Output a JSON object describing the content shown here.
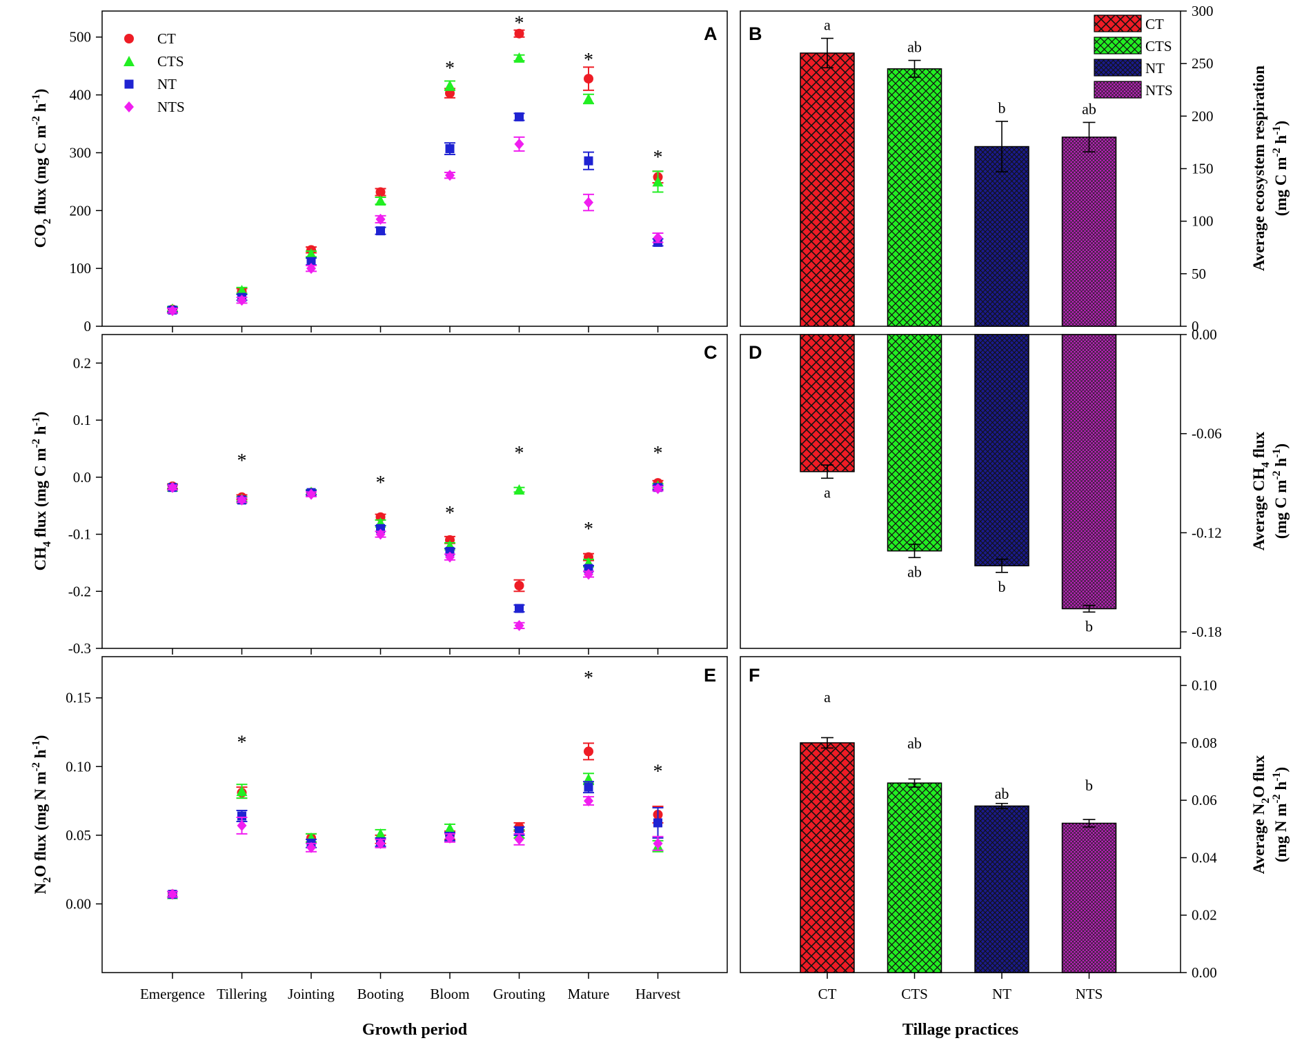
{
  "colors": {
    "CT": "#ee1c25",
    "CTS": "#22ee22",
    "NT": "#1f23d2",
    "NTS": "#f01ef0",
    "NT_bar": "#1a1a8c",
    "NTS_bar": "#c020c0",
    "axis": "#000000"
  },
  "growth_periods": [
    "Emergence",
    "Tillering",
    "Jointing",
    "Booting",
    "Bloom",
    "Grouting",
    "Mature",
    "Harvest"
  ],
  "treatments": [
    "CT",
    "CTS",
    "NT",
    "NTS"
  ],
  "bottom_labels": {
    "left_xlabel": "Growth period",
    "right_xlabel": "Tillage practices"
  },
  "chart_data": [
    {
      "id": "A",
      "type": "scatter",
      "panel_letter": "A",
      "ylabel_parts": [
        "CO",
        "2",
        " flux (mg C m",
        "-2",
        " h",
        "-1",
        ")"
      ],
      "ylim": [
        0,
        545
      ],
      "yticks": [
        0,
        100,
        200,
        300,
        400,
        500
      ],
      "ytick_labels": [
        "0",
        "100",
        "200",
        "300",
        "400",
        "500"
      ],
      "categories": [
        "Emergence",
        "Tillering",
        "Jointing",
        "Booting",
        "Bloom",
        "Grouting",
        "Mature",
        "Harvest"
      ],
      "legend": [
        "CT",
        "CTS",
        "NT",
        "NTS"
      ],
      "series": [
        {
          "name": "CT",
          "values": [
            29,
            60,
            132,
            232,
            403,
            506,
            428,
            258
          ],
          "errors": [
            4,
            5,
            5,
            6,
            8,
            6,
            20,
            10
          ]
        },
        {
          "name": "CTS",
          "values": [
            30,
            62,
            125,
            217,
            416,
            464,
            393,
            250
          ],
          "errors": [
            4,
            5,
            5,
            6,
            8,
            5,
            8,
            18
          ]
        },
        {
          "name": "NT",
          "values": [
            28,
            50,
            112,
            165,
            307,
            362,
            286,
            145
          ],
          "errors": [
            4,
            5,
            6,
            6,
            10,
            6,
            15,
            6
          ]
        },
        {
          "name": "NTS",
          "values": [
            27,
            45,
            100,
            185,
            261,
            315,
            214,
            153
          ],
          "errors": [
            4,
            5,
            5,
            6,
            5,
            12,
            14,
            8
          ]
        }
      ],
      "significance": [
        {
          "category": "Bloom",
          "label": "*",
          "y": 452
        },
        {
          "category": "Grouting",
          "label": "*",
          "y": 530
        },
        {
          "category": "Mature",
          "label": "*",
          "y": 466
        },
        {
          "category": "Harvest",
          "label": "*",
          "y": 298
        }
      ]
    },
    {
      "id": "B",
      "type": "bar",
      "panel_letter": "B",
      "ylabel_line1": "Average ecosystem respiration",
      "ylabel_line2_parts": [
        "(mg C m",
        "-2",
        " h",
        "-1",
        ")"
      ],
      "ylim": [
        0,
        300
      ],
      "yticks": [
        0,
        50,
        100,
        150,
        200,
        250,
        300
      ],
      "ytick_labels": [
        "0",
        "50",
        "100",
        "150",
        "200",
        "250",
        "300"
      ],
      "categories": [
        "CT",
        "CTS",
        "NT",
        "NTS"
      ],
      "values": [
        260,
        245,
        171,
        180
      ],
      "errors": [
        14,
        8,
        24,
        14
      ],
      "letters": [
        "a",
        "ab",
        "b",
        "ab"
      ],
      "legend": [
        "CT",
        "CTS",
        "NT",
        "NTS"
      ]
    },
    {
      "id": "C",
      "type": "scatter",
      "panel_letter": "C",
      "ylabel_parts": [
        "CH",
        "4",
        " flux (mg C m",
        "-2",
        " h",
        "-1",
        ")"
      ],
      "ylim": [
        -0.3,
        0.25
      ],
      "yticks": [
        -0.3,
        -0.2,
        -0.1,
        0.0,
        0.1,
        0.2
      ],
      "ytick_labels": [
        "-0.3",
        "-0.2",
        "-0.1",
        "0.0",
        "0.1",
        "0.2"
      ],
      "categories": [
        "Emergence",
        "Tillering",
        "Jointing",
        "Booting",
        "Bloom",
        "Grouting",
        "Mature",
        "Harvest"
      ],
      "series": [
        {
          "name": "CT",
          "values": [
            -0.016,
            -0.035,
            -0.027,
            -0.07,
            -0.11,
            -0.19,
            -0.14,
            -0.01
          ],
          "errors": [
            0.004,
            0.004,
            0.004,
            0.005,
            0.006,
            0.01,
            0.006,
            0.004
          ]
        },
        {
          "name": "CTS",
          "values": [
            -0.017,
            -0.038,
            -0.026,
            -0.08,
            -0.12,
            -0.022,
            -0.15,
            -0.015
          ],
          "errors": [
            0.004,
            0.004,
            0.004,
            0.005,
            0.005,
            0.004,
            0.006,
            0.004
          ]
        },
        {
          "name": "NT",
          "values": [
            -0.018,
            -0.04,
            -0.027,
            -0.09,
            -0.13,
            -0.23,
            -0.16,
            -0.018
          ],
          "errors": [
            0.004,
            0.004,
            0.004,
            0.005,
            0.005,
            0.006,
            0.005,
            0.004
          ]
        },
        {
          "name": "NTS",
          "values": [
            -0.018,
            -0.04,
            -0.03,
            -0.1,
            -0.14,
            -0.26,
            -0.17,
            -0.02
          ],
          "errors": [
            0.004,
            0.004,
            0.004,
            0.005,
            0.005,
            0.005,
            0.005,
            0.004
          ]
        }
      ],
      "significance": [
        {
          "category": "Tillering",
          "label": "*",
          "y": 0.035
        },
        {
          "category": "Booting",
          "label": "*",
          "y": -0.004
        },
        {
          "category": "Bloom",
          "label": "*",
          "y": -0.057
        },
        {
          "category": "Grouting",
          "label": "*",
          "y": 0.048
        },
        {
          "category": "Mature",
          "label": "*",
          "y": -0.085
        },
        {
          "category": "Harvest",
          "label": "*",
          "y": 0.048
        }
      ]
    },
    {
      "id": "D",
      "type": "bar",
      "panel_letter": "D",
      "ylabel_line1_parts": [
        "Average CH",
        "4",
        " flux"
      ],
      "ylabel_line2_parts": [
        "(mg C m",
        "-2",
        " h",
        "-1",
        ")"
      ],
      "ylim": [
        -0.19,
        0.0
      ],
      "yticks": [
        -0.18,
        -0.12,
        -0.06,
        0.0
      ],
      "ytick_labels": [
        "-0.18",
        "-0.12",
        "-0.06",
        "0.00"
      ],
      "categories": [
        "CT",
        "CTS",
        "NT",
        "NTS"
      ],
      "values": [
        -0.083,
        -0.131,
        -0.14,
        -0.166
      ],
      "errors": [
        0.004,
        0.004,
        0.004,
        0.002
      ],
      "letters": [
        "a",
        "ab",
        "b",
        "b"
      ]
    },
    {
      "id": "E",
      "type": "scatter",
      "panel_letter": "E",
      "ylabel_parts": [
        "N",
        "2",
        "O flux (mg N m",
        "-2",
        " h",
        "-1",
        ")"
      ],
      "ylim": [
        -0.05,
        0.18
      ],
      "yticks": [
        0.0,
        0.05,
        0.1,
        0.15
      ],
      "ytick_labels": [
        "0.00",
        "0.05",
        "0.10",
        "0.15"
      ],
      "categories": [
        "Emergence",
        "Tillering",
        "Jointing",
        "Booting",
        "Bloom",
        "Grouting",
        "Mature",
        "Harvest"
      ],
      "series": [
        {
          "name": "CT",
          "values": [
            0.007,
            0.081,
            0.048,
            0.047,
            0.05,
            0.056,
            0.111,
            0.065
          ],
          "errors": [
            0.002,
            0.004,
            0.003,
            0.003,
            0.003,
            0.003,
            0.006,
            0.006
          ]
        },
        {
          "name": "CTS",
          "values": [
            0.007,
            0.082,
            0.048,
            0.051,
            0.055,
            0.051,
            0.091,
            0.042
          ],
          "errors": [
            0.002,
            0.005,
            0.003,
            0.003,
            0.003,
            0.003,
            0.004,
            0.004
          ]
        },
        {
          "name": "NT",
          "values": [
            0.007,
            0.064,
            0.044,
            0.045,
            0.049,
            0.053,
            0.085,
            0.059
          ],
          "errors": [
            0.002,
            0.004,
            0.003,
            0.003,
            0.003,
            0.003,
            0.004,
            0.011
          ]
        },
        {
          "name": "NTS",
          "values": [
            0.007,
            0.057,
            0.041,
            0.044,
            0.048,
            0.047,
            0.075,
            0.044
          ],
          "errors": [
            0.002,
            0.006,
            0.003,
            0.003,
            0.003,
            0.004,
            0.003,
            0.005
          ]
        }
      ],
      "significance": [
        {
          "category": "Tillering",
          "label": "*",
          "y": 0.12
        },
        {
          "category": "Mature",
          "label": "*",
          "y": 0.167
        },
        {
          "category": "Harvest",
          "label": "*",
          "y": 0.099
        }
      ]
    },
    {
      "id": "F",
      "type": "bar",
      "panel_letter": "F",
      "ylabel_line1_parts": [
        "Average N",
        "2",
        "O flux"
      ],
      "ylabel_line2_parts": [
        "(mg N m",
        "-2",
        " h",
        "-1",
        ")"
      ],
      "ylim": [
        0,
        0.11
      ],
      "yticks": [
        0,
        0.02,
        0.04,
        0.06,
        0.08,
        0.1
      ],
      "ytick_labels": [
        "0.00",
        "0.02",
        "0.04",
        "0.06",
        "0.08",
        "0.10"
      ],
      "categories": [
        "CT",
        "CTS",
        "NT",
        "NTS"
      ],
      "values": [
        0.08,
        0.066,
        0.058,
        0.052
      ],
      "errors": [
        0.0018,
        0.0014,
        0.0009,
        0.0013
      ],
      "letters": [
        "a",
        "ab",
        "ab",
        "b"
      ]
    }
  ]
}
